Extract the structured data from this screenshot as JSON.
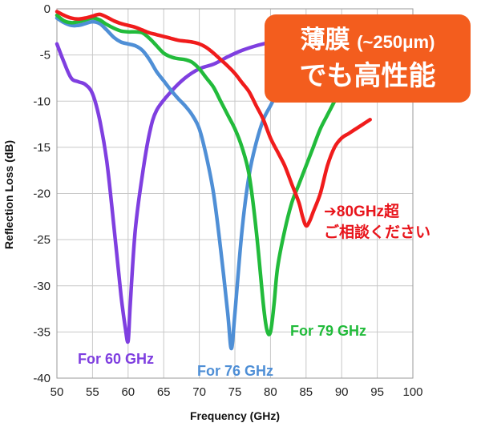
{
  "chart_data": {
    "type": "line",
    "xlabel": "Frequency (GHz)",
    "ylabel": "Reflection Loss (dB)",
    "xlim": [
      50,
      100
    ],
    "ylim": [
      -40,
      0
    ],
    "xticks": [
      50,
      55,
      60,
      65,
      70,
      75,
      80,
      85,
      90,
      95,
      100
    ],
    "yticks": [
      0,
      -5,
      -10,
      -15,
      -20,
      -25,
      -30,
      -35,
      -40
    ],
    "grid": true,
    "series": [
      {
        "name": "For 60 GHz",
        "color": "#7f3fe0",
        "x": [
          50,
          51,
          52,
          53,
          54,
          55,
          56,
          57,
          58,
          59,
          59.6,
          60,
          60.3,
          61,
          62,
          63,
          64,
          66,
          68,
          70,
          72,
          74,
          76,
          78,
          80
        ],
        "y": [
          -3.8,
          -5.8,
          -7.5,
          -7.9,
          -8.2,
          -9.2,
          -12,
          -16.5,
          -23.5,
          -31,
          -34.5,
          -36,
          -32,
          -24,
          -18,
          -13.5,
          -11,
          -9,
          -7.5,
          -6.5,
          -6,
          -5.2,
          -4.5,
          -4,
          -3.6
        ]
      },
      {
        "name": "For 76 GHz",
        "color": "#4f8fd6",
        "x": [
          50,
          51,
          52,
          53,
          54,
          55,
          56,
          57,
          58,
          59,
          60,
          61,
          62,
          63,
          64,
          65,
          66,
          67,
          68,
          69,
          70,
          71,
          72,
          73,
          74,
          74.5,
          75,
          76,
          77,
          78,
          79,
          80,
          81
        ],
        "y": [
          -1,
          -1.5,
          -1.8,
          -1.8,
          -1.6,
          -1.4,
          -1.6,
          -2.3,
          -3.1,
          -3.6,
          -3.8,
          -4,
          -4.5,
          -5.5,
          -6.8,
          -7.8,
          -8.8,
          -9.7,
          -10.5,
          -11.5,
          -13,
          -16,
          -20,
          -26,
          -33,
          -36.8,
          -33,
          -24,
          -18,
          -14.5,
          -12,
          -10.5,
          -9
        ]
      },
      {
        "name": "For 79 GHz",
        "color": "#22bb3b",
        "x": [
          50,
          51,
          52,
          53,
          54,
          55,
          56,
          57,
          58,
          59,
          60,
          61,
          62,
          63,
          64,
          65,
          66,
          67,
          68,
          69,
          70,
          71,
          72,
          73,
          74,
          75,
          76,
          77,
          78,
          79,
          79.5,
          80,
          80.5,
          81,
          82,
          83,
          84,
          85,
          86,
          87,
          88,
          89,
          90,
          91
        ],
        "y": [
          -0.7,
          -1.3,
          -1.5,
          -1.4,
          -1.2,
          -1.0,
          -1.2,
          -1.7,
          -2.1,
          -2.4,
          -2.5,
          -2.5,
          -2.6,
          -3.2,
          -4,
          -4.8,
          -5.2,
          -5.4,
          -5.5,
          -5.8,
          -6.5,
          -7.5,
          -8.5,
          -10,
          -11.5,
          -13,
          -15,
          -18,
          -24,
          -32,
          -34.8,
          -35,
          -32,
          -28,
          -24,
          -21,
          -19,
          -17,
          -15,
          -13,
          -11.5,
          -10,
          -8.5,
          -7
        ]
      },
      {
        "name": "",
        "color": "#f01c1c",
        "x": [
          50,
          51,
          52,
          53,
          54,
          55,
          56,
          57,
          58,
          59,
          60,
          61,
          62,
          63,
          64,
          65,
          66,
          67,
          68,
          69,
          70,
          71,
          72,
          73,
          74,
          75,
          76,
          77,
          78,
          79,
          80,
          81,
          82,
          83,
          84,
          84.5,
          85,
          85.5,
          86,
          87,
          88,
          89,
          90,
          91,
          92,
          93,
          94
        ],
        "y": [
          -0.3,
          -0.7,
          -1.0,
          -1.1,
          -1.0,
          -0.8,
          -0.6,
          -0.9,
          -1.3,
          -1.6,
          -1.8,
          -2.0,
          -2.3,
          -2.6,
          -2.8,
          -3.0,
          -3.2,
          -3.4,
          -3.5,
          -3.6,
          -3.8,
          -4.2,
          -4.8,
          -5.5,
          -6.2,
          -7,
          -8,
          -9,
          -10.5,
          -12,
          -14,
          -15.5,
          -17,
          -19,
          -21,
          -22.5,
          -23.5,
          -23,
          -22,
          -20,
          -17,
          -15,
          -14,
          -13.5,
          -13,
          -12.5,
          -12
        ]
      }
    ]
  },
  "callout": {
    "line1": "薄膜",
    "line1_paren": "(~250μm)",
    "line2": "でも高性能"
  },
  "note": {
    "line1": "➔80GHz超",
    "line2": "ご相談ください"
  }
}
